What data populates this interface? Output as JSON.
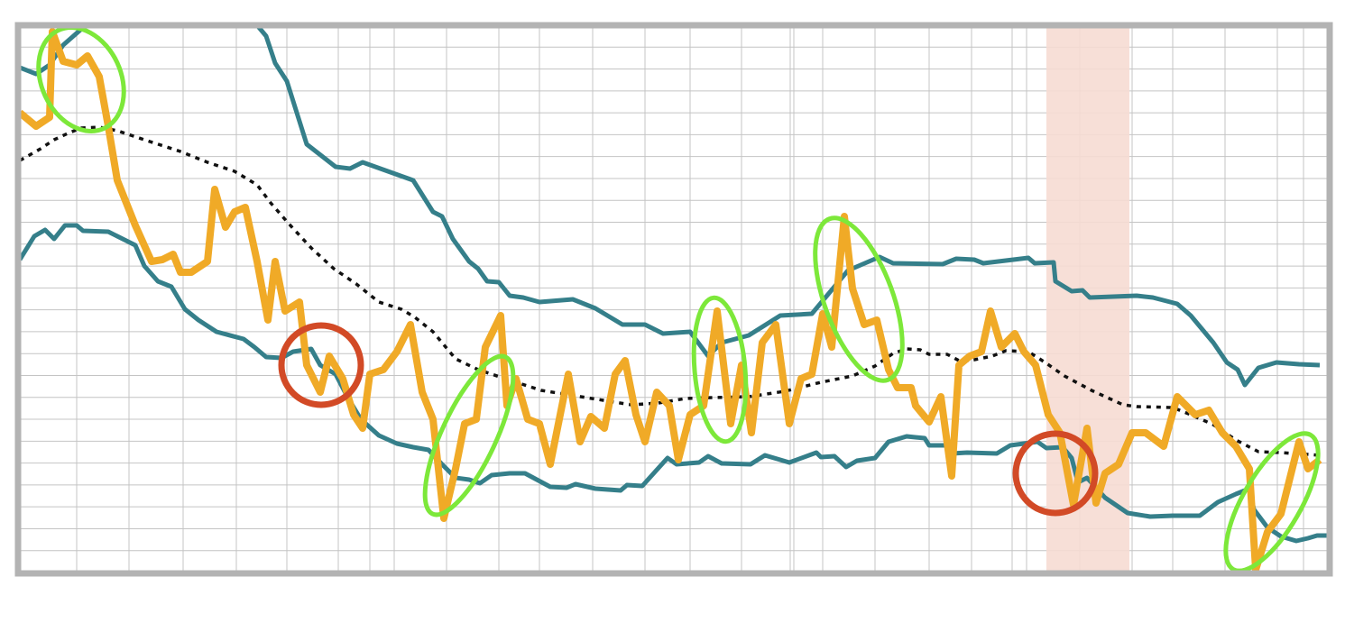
{
  "chart_data": {
    "type": "line",
    "xlim": [
      22,
      1472
    ],
    "ylim": [
      0,
      607
    ],
    "grid": true,
    "highlight_x": [
      1160,
      1252
    ],
    "highlight_color": "#f6dcd3",
    "series": [
      {
        "color": "#f0aa27",
        "width": 8,
        "dash": false,
        "x": [
          22,
          40,
          55,
          58,
          70,
          85,
          97,
          110,
          120,
          130,
          150,
          168,
          180,
          192,
          200,
          212,
          230,
          238,
          250,
          260,
          272,
          285,
          297,
          305,
          316,
          332,
          340,
          355,
          365,
          380,
          392,
          402,
          410,
          425,
          440,
          455,
          468,
          480,
          492,
          505,
          515,
          528,
          538,
          555,
          562,
          572,
          585,
          598,
          610,
          630,
          643,
          655,
          670,
          682,
          693,
          705,
          715,
          728,
          742,
          752,
          765,
          780,
          795,
          810,
          822,
          833,
          845,
          860,
          875,
          888,
          900,
          912,
          922,
          936,
          945,
          958,
          972,
          985,
          995,
          1010,
          1015,
          1030,
          1043,
          1055,
          1063,
          1075,
          1088,
          1098,
          1110,
          1125,
          1135,
          1148,
          1162,
          1175,
          1190,
          1205,
          1215,
          1225,
          1240,
          1255,
          1270,
          1290,
          1305,
          1325,
          1340,
          1355,
          1370,
          1385,
          1392,
          1405,
          1420,
          1440,
          1450,
          1463
        ],
        "values": [
          510,
          495,
          505,
          600,
          567,
          563,
          573,
          550,
          495,
          435,
          385,
          345,
          347,
          353,
          333,
          333,
          345,
          425,
          383,
          400,
          405,
          345,
          280,
          345,
          290,
          300,
          230,
          200,
          240,
          215,
          175,
          160,
          220,
          225,
          245,
          275,
          200,
          170,
          60,
          115,
          165,
          170,
          250,
          285,
          185,
          215,
          170,
          165,
          120,
          220,
          145,
          173,
          160,
          220,
          235,
          175,
          145,
          200,
          185,
          125,
          175,
          185,
          290,
          165,
          230,
          155,
          255,
          275,
          165,
          215,
          220,
          287,
          250,
          395,
          315,
          275,
          280,
          225,
          205,
          205,
          185,
          167,
          195,
          107,
          230,
          240,
          245,
          290,
          250,
          265,
          245,
          230,
          175,
          155,
          75,
          160,
          77,
          110,
          120,
          155,
          155,
          140,
          195,
          175,
          180,
          155,
          140,
          115,
          3,
          45,
          65,
          145,
          115,
          125
        ]
      },
      {
        "color": "#357f8a",
        "width": 5,
        "dash": false,
        "x": [
          22,
          40,
          55,
          70,
          95,
          190,
          285,
          295,
          305,
          318,
          340,
          372,
          388,
          402,
          430,
          458,
          480,
          490,
          502,
          520,
          530,
          540,
          553,
          565,
          580,
          598,
          635,
          660,
          690,
          715,
          735,
          765,
          785,
          800,
          830,
          865,
          900,
          915,
          940,
          975,
          990,
          1045,
          1060,
          1080,
          1090,
          1140,
          1147,
          1168,
          1170,
          1188,
          1200,
          1208,
          1260,
          1278,
          1305,
          1320,
          1345,
          1360,
          1372,
          1380,
          1395,
          1415,
          1440,
          1463
        ],
        "values": [
          560,
          553,
          563,
          585,
          607,
          null,
          607,
          595,
          565,
          545,
          475,
          450,
          448,
          455,
          445,
          435,
          400,
          395,
          370,
          345,
          337,
          323,
          322,
          307,
          305,
          300,
          303,
          293,
          275,
          275,
          265,
          267,
          240,
          255,
          263,
          285,
          287,
          305,
          335,
          350,
          343,
          342,
          348,
          347,
          343,
          349,
          343,
          344,
          323,
          312,
          313,
          305,
          307,
          305,
          298,
          285,
          255,
          233,
          225,
          208,
          227,
          233,
          231,
          230
        ]
      },
      {
        "color": "#357f8a",
        "width": 5,
        "dash": false,
        "x": [
          22,
          38,
          50,
          60,
          72,
          85,
          92,
          120,
          130,
          150,
          160,
          175,
          190,
          205,
          220,
          240,
          270,
          282,
          295,
          312,
          325,
          345,
          355,
          372,
          385,
          400,
          420,
          440,
          458,
          475,
          490,
          505,
          520,
          532,
          545,
          565,
          582,
          610,
          628,
          638,
          660,
          688,
          695,
          712,
          740,
          750,
          775,
          785,
          800,
          832,
          848,
          875,
          905,
          910,
          925,
          938,
          950,
          970,
          985,
          1005,
          1025,
          1030,
          1052,
          1055,
          1072,
          1105,
          1120,
          1150,
          1160,
          1178,
          1188,
          1195,
          1205,
          1225,
          1250,
          1275,
          1300,
          1330,
          1350,
          1370,
          1385,
          1390,
          1405,
          1420,
          1437,
          1450,
          1460,
          1472
        ],
        "values": [
          347,
          373,
          380,
          370,
          385,
          385,
          379,
          378,
          373,
          363,
          340,
          323,
          317,
          292,
          280,
          267,
          259,
          250,
          239,
          238,
          245,
          248,
          230,
          220,
          195,
          170,
          152,
          143,
          139,
          136,
          120,
          105,
          103,
          99,
          108,
          110,
          110,
          95,
          94,
          98,
          93,
          91,
          97,
          96,
          127,
          120,
          122,
          129,
          121,
          120,
          130,
          122,
          133,
          128,
          129,
          117,
          124,
          127,
          145,
          151,
          149,
          141,
          141,
          132,
          133,
          132,
          141,
          145,
          138,
          139,
          127,
          100,
          105,
          83,
          66,
          62,
          63,
          63,
          78,
          87,
          93,
          70,
          50,
          40,
          35,
          38,
          41,
          41
        ]
      },
      {
        "color": "#111111",
        "width": 3.5,
        "dash": true,
        "x": [
          22,
          45,
          60,
          75,
          90,
          110,
          130,
          160,
          200,
          230,
          260,
          285,
          300,
          320,
          345,
          370,
          395,
          420,
          445,
          460,
          480,
          505,
          530,
          560,
          600,
          650,
          700,
          730,
          760,
          790,
          830,
          870,
          910,
          945,
          970,
          990,
          1005,
          1020,
          1030,
          1050,
          1065,
          1080,
          1100,
          1115,
          1140,
          1160,
          1180,
          1210,
          1245,
          1260,
          1300,
          1320,
          1345,
          1370,
          1395,
          1420,
          1450,
          1463
        ],
        "values": [
          457,
          470,
          480,
          487,
          493,
          494,
          490,
          480,
          467,
          455,
          445,
          430,
          410,
          387,
          360,
          337,
          320,
          300,
          292,
          283,
          267,
          237,
          225,
          215,
          202,
          194,
          186,
          188,
          193,
          194,
          195,
          201,
          211,
          218,
          229,
          243,
          248,
          247,
          242,
          242,
          234,
          236,
          240,
          246,
          245,
          232,
          218,
          202,
          186,
          184,
          183,
          175,
          164,
          147,
          134,
          133,
          131,
          130
        ]
      }
    ]
  }
}
